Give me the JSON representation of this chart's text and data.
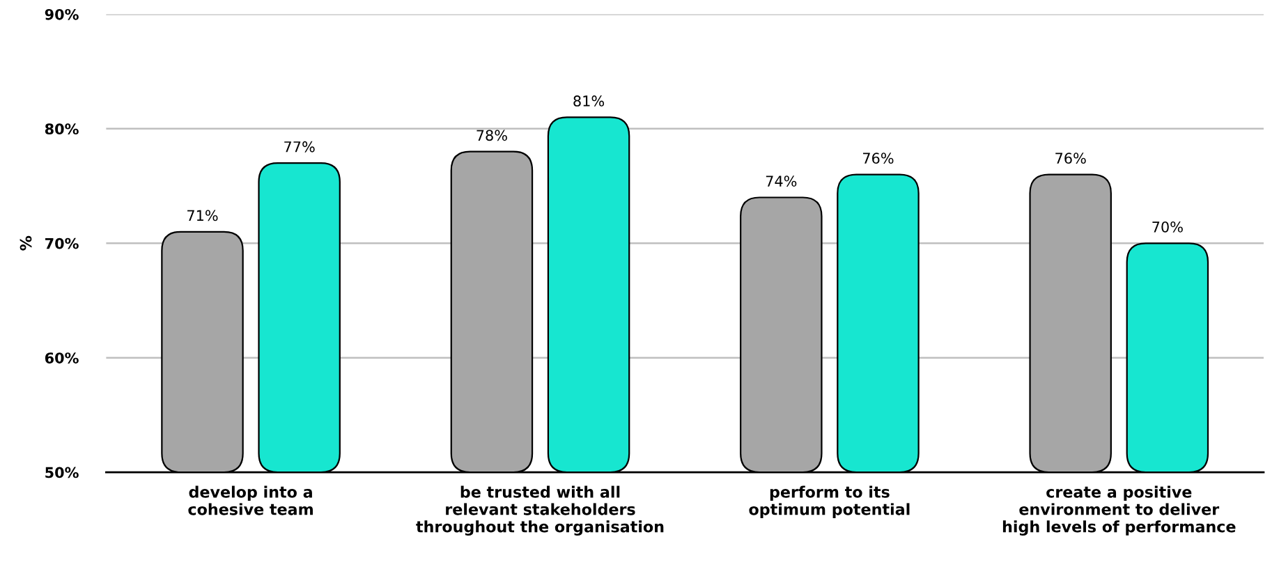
{
  "chart_data": {
    "type": "bar",
    "ylabel": "%",
    "categories": [
      "develop into a\ncohesive team",
      "be trusted with all\nrelevant stakeholders\nthroughout the organisation",
      "perform to its\noptimum potential",
      "create a positive\nenvironment to deliver\nhigh levels of performance"
    ],
    "series": [
      {
        "color": "#a6a6a6",
        "values": [
          71,
          78,
          74,
          76
        ],
        "value_labels": [
          "71%",
          "78%",
          "74%",
          "76%"
        ]
      },
      {
        "color": "#17e6d0",
        "values": [
          77,
          81,
          76,
          70
        ],
        "value_labels": [
          "77%",
          "81%",
          "76%",
          "70%"
        ]
      }
    ],
    "ylim": [
      50,
      90
    ],
    "yticks": [
      {
        "value": 50,
        "label": "50%"
      },
      {
        "value": 60,
        "label": "60%"
      },
      {
        "value": 70,
        "label": "70%"
      },
      {
        "value": 80,
        "label": "80%"
      },
      {
        "value": 90,
        "label": "90%"
      }
    ],
    "grid": "y"
  }
}
